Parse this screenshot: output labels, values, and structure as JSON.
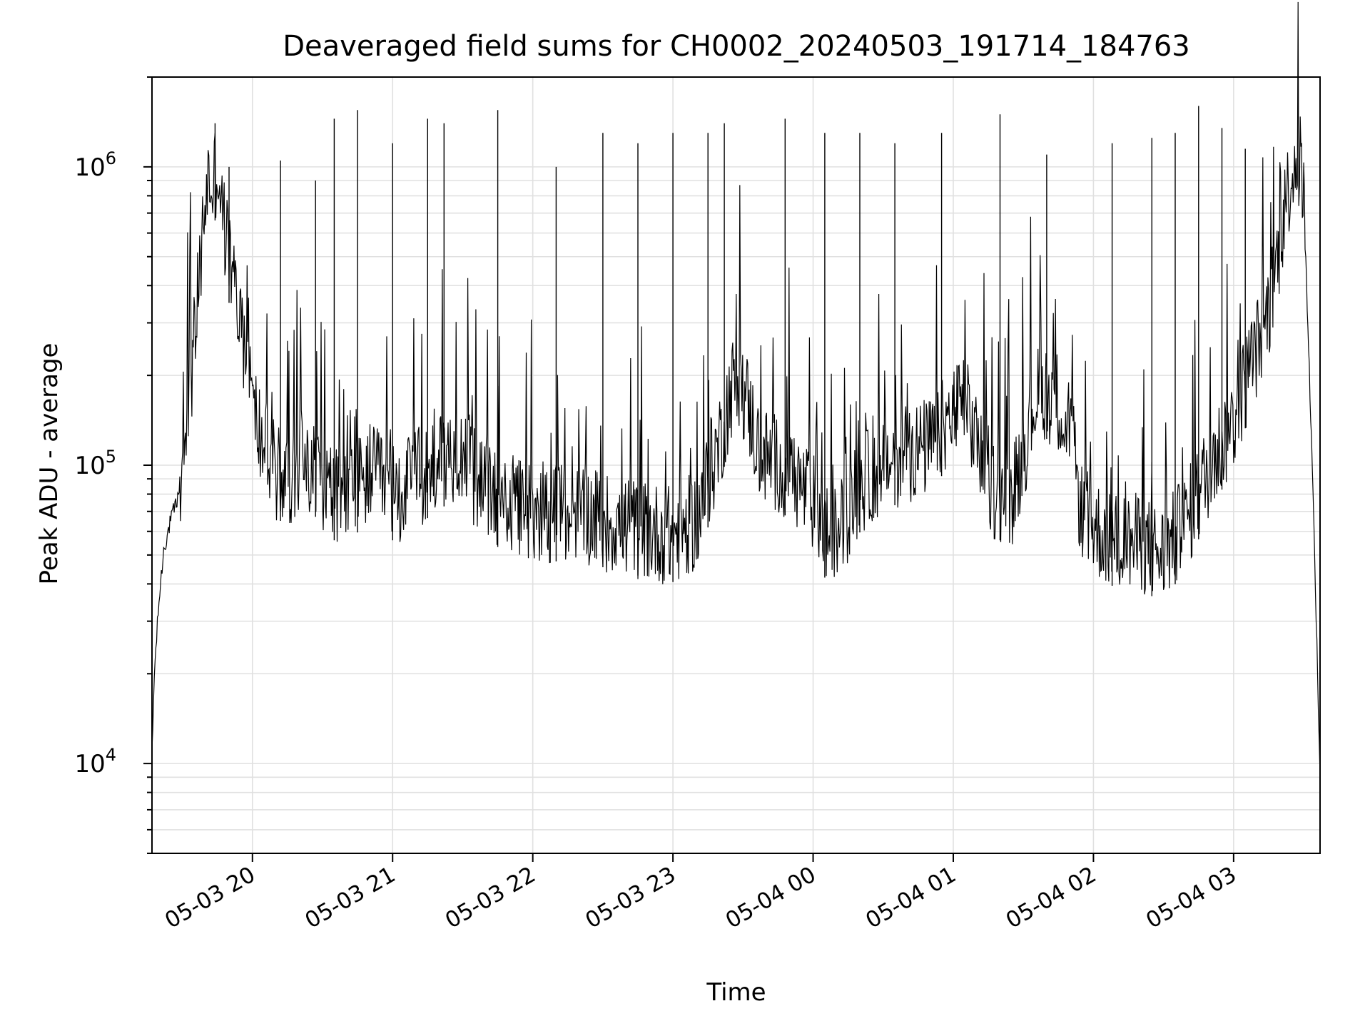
{
  "chart_data": {
    "type": "line",
    "title": "Deaveraged field sums for CH0002_20240503_191714_184763",
    "xlabel": "Time",
    "ylabel": "Peak ADU - average",
    "y_scale": "log",
    "xlim": [
      "2024-05-03 19:17",
      "2024-05-04 03:37"
    ],
    "ylim": [
      5000,
      2000000
    ],
    "grid": true,
    "x_ticks": [
      "05-03 20",
      "05-03 21",
      "05-03 22",
      "05-03 23",
      "05-04 00",
      "05-04 01",
      "05-04 02",
      "05-04 03"
    ],
    "y_ticks": [
      {
        "value": 10000,
        "base": "10",
        "exp": "4"
      },
      {
        "value": 100000,
        "base": "10",
        "exp": "5"
      },
      {
        "value": 1000000,
        "base": "10",
        "exp": "6"
      }
    ],
    "series_color": "#000000",
    "series": [
      {
        "x": [
          "2024-05-03 19:17",
          "2024-05-03 19:18",
          "2024-05-03 19:20",
          "2024-05-03 19:22",
          "2024-05-03 19:25",
          "2024-05-03 19:28",
          "2024-05-03 19:31",
          "2024-05-03 19:35",
          "2024-05-03 19:38",
          "2024-05-03 19:40",
          "2024-05-03 19:41",
          "2024-05-03 19:43",
          "2024-05-03 19:45",
          "2024-05-03 19:47",
          "2024-05-03 19:50",
          "2024-05-03 19:53",
          "2024-05-03 19:55",
          "2024-05-03 19:58",
          "2024-05-03 20:00",
          "2024-05-03 20:03",
          "2024-05-03 20:05",
          "2024-05-03 20:08",
          "2024-05-03 20:10",
          "2024-05-03 20:15",
          "2024-05-03 20:20",
          "2024-05-03 20:25",
          "2024-05-03 20:30",
          "2024-05-03 20:35",
          "2024-05-03 20:40",
          "2024-05-03 20:45",
          "2024-05-03 20:50",
          "2024-05-03 20:55",
          "2024-05-03 21:00",
          "2024-05-03 21:05",
          "2024-05-03 21:10",
          "2024-05-03 21:15",
          "2024-05-03 21:20",
          "2024-05-03 21:25",
          "2024-05-03 21:30",
          "2024-05-03 21:35",
          "2024-05-03 21:40",
          "2024-05-03 21:45",
          "2024-05-03 21:50",
          "2024-05-03 21:55",
          "2024-05-03 22:00",
          "2024-05-03 22:10",
          "2024-05-03 22:20",
          "2024-05-03 22:30",
          "2024-05-03 22:40",
          "2024-05-03 22:50",
          "2024-05-03 23:00",
          "2024-05-03 23:10",
          "2024-05-03 23:20",
          "2024-05-03 23:25",
          "2024-05-03 23:28",
          "2024-05-03 23:32",
          "2024-05-03 23:37",
          "2024-05-03 23:45",
          "2024-05-03 23:50",
          "2024-05-03 23:55",
          "2024-05-04 00:00",
          "2024-05-04 00:05",
          "2024-05-04 00:10",
          "2024-05-04 00:15",
          "2024-05-04 00:20",
          "2024-05-04 00:30",
          "2024-05-04 00:40",
          "2024-05-04 00:50",
          "2024-05-04 01:00",
          "2024-05-04 01:05",
          "2024-05-04 01:10",
          "2024-05-04 01:15",
          "2024-05-04 01:20",
          "2024-05-04 01:25",
          "2024-05-04 01:30",
          "2024-05-04 01:35",
          "2024-05-04 01:40",
          "2024-05-04 01:45",
          "2024-05-04 01:50",
          "2024-05-04 01:55",
          "2024-05-04 02:00",
          "2024-05-04 02:10",
          "2024-05-04 02:20",
          "2024-05-04 02:25",
          "2024-05-04 02:30",
          "2024-05-04 02:40",
          "2024-05-04 02:50",
          "2024-05-04 03:00",
          "2024-05-04 03:05",
          "2024-05-04 03:10",
          "2024-05-04 03:15",
          "2024-05-04 03:18",
          "2024-05-04 03:21",
          "2024-05-04 03:24",
          "2024-05-04 03:27",
          "2024-05-04 03:30",
          "2024-05-04 03:33",
          "2024-05-04 03:35",
          "2024-05-04 03:37"
        ],
        "values": [
          10500,
          20000,
          35000,
          52000,
          65000,
          78000,
          110000,
          250000,
          500000,
          800000,
          900000,
          850000,
          1050000,
          700000,
          500000,
          370000,
          300000,
          220000,
          160000,
          130000,
          115000,
          100000,
          95000,
          90000,
          105000,
          100000,
          90000,
          80000,
          75000,
          85000,
          95000,
          88000,
          80000,
          82000,
          90000,
          95000,
          100000,
          110000,
          115000,
          90000,
          80000,
          76000,
          74000,
          72000,
          70000,
          68000,
          70000,
          65000,
          62000,
          60000,
          58000,
          65000,
          120000,
          180000,
          200000,
          160000,
          110000,
          100000,
          95000,
          85000,
          75000,
          60000,
          58000,
          70000,
          85000,
          100000,
          110000,
          115000,
          150000,
          160000,
          120000,
          85000,
          80000,
          78000,
          110000,
          170000,
          175000,
          165000,
          120000,
          70000,
          62000,
          55000,
          55000,
          52000,
          50000,
          65000,
          100000,
          140000,
          190000,
          250000,
          330000,
          450000,
          650000,
          900000,
          1100000,
          800000,
          150000,
          40000,
          9000
        ]
      }
    ],
    "spikes": {
      "x": [
        "2024-05-03 19:44",
        "2024-05-03 19:50",
        "2024-05-03 20:12",
        "2024-05-03 20:27",
        "2024-05-03 20:35",
        "2024-05-03 20:45",
        "2024-05-03 21:00",
        "2024-05-03 21:15",
        "2024-05-03 21:22",
        "2024-05-03 21:45",
        "2024-05-03 22:10",
        "2024-05-03 22:30",
        "2024-05-03 22:45",
        "2024-05-03 23:00",
        "2024-05-03 23:15",
        "2024-05-03 23:22",
        "2024-05-03 23:48",
        "2024-05-04 00:05",
        "2024-05-04 00:20",
        "2024-05-04 00:35",
        "2024-05-04 00:55",
        "2024-05-04 01:20",
        "2024-05-04 01:40",
        "2024-05-04 02:08",
        "2024-05-04 02:25",
        "2024-05-04 02:35",
        "2024-05-04 02:45",
        "2024-05-04 02:55",
        "2024-05-04 03:05"
      ],
      "values": [
        1400000,
        1000000,
        1050000,
        900000,
        1450000,
        1550000,
        1200000,
        1450000,
        1400000,
        1550000,
        1000000,
        1300000,
        1200000,
        1300000,
        1300000,
        1400000,
        1450000,
        1300000,
        1300000,
        1200000,
        1300000,
        1500000,
        1100000,
        1200000,
        1250000,
        1300000,
        1600000,
        1350000,
        1150000
      ]
    }
  }
}
